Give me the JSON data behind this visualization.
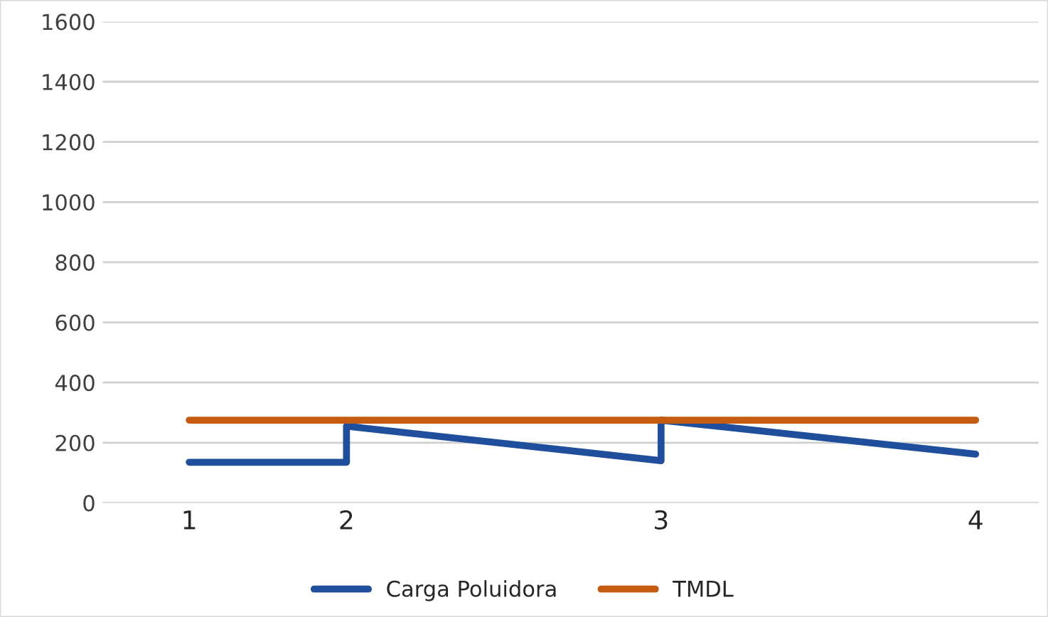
{
  "chart_data": {
    "type": "line",
    "categories": [
      "1",
      "2",
      null,
      "3",
      null,
      "4"
    ],
    "series": [
      {
        "name": "Carga Poluidora",
        "color": "#1f4e9c",
        "x": [
          "1",
          "2",
          "2",
          "3",
          "3",
          "4"
        ],
        "values": [
          135,
          135,
          255,
          140,
          275,
          162
        ]
      },
      {
        "name": "TMDL",
        "color": "#c55a11",
        "x": [
          "1",
          "4"
        ],
        "values": [
          275,
          275
        ]
      }
    ],
    "ylim": [
      0,
      1600
    ],
    "yticks": [
      0,
      200,
      400,
      600,
      800,
      1000,
      1200,
      1400,
      1600
    ],
    "grid": "y",
    "legend": "bottom"
  }
}
